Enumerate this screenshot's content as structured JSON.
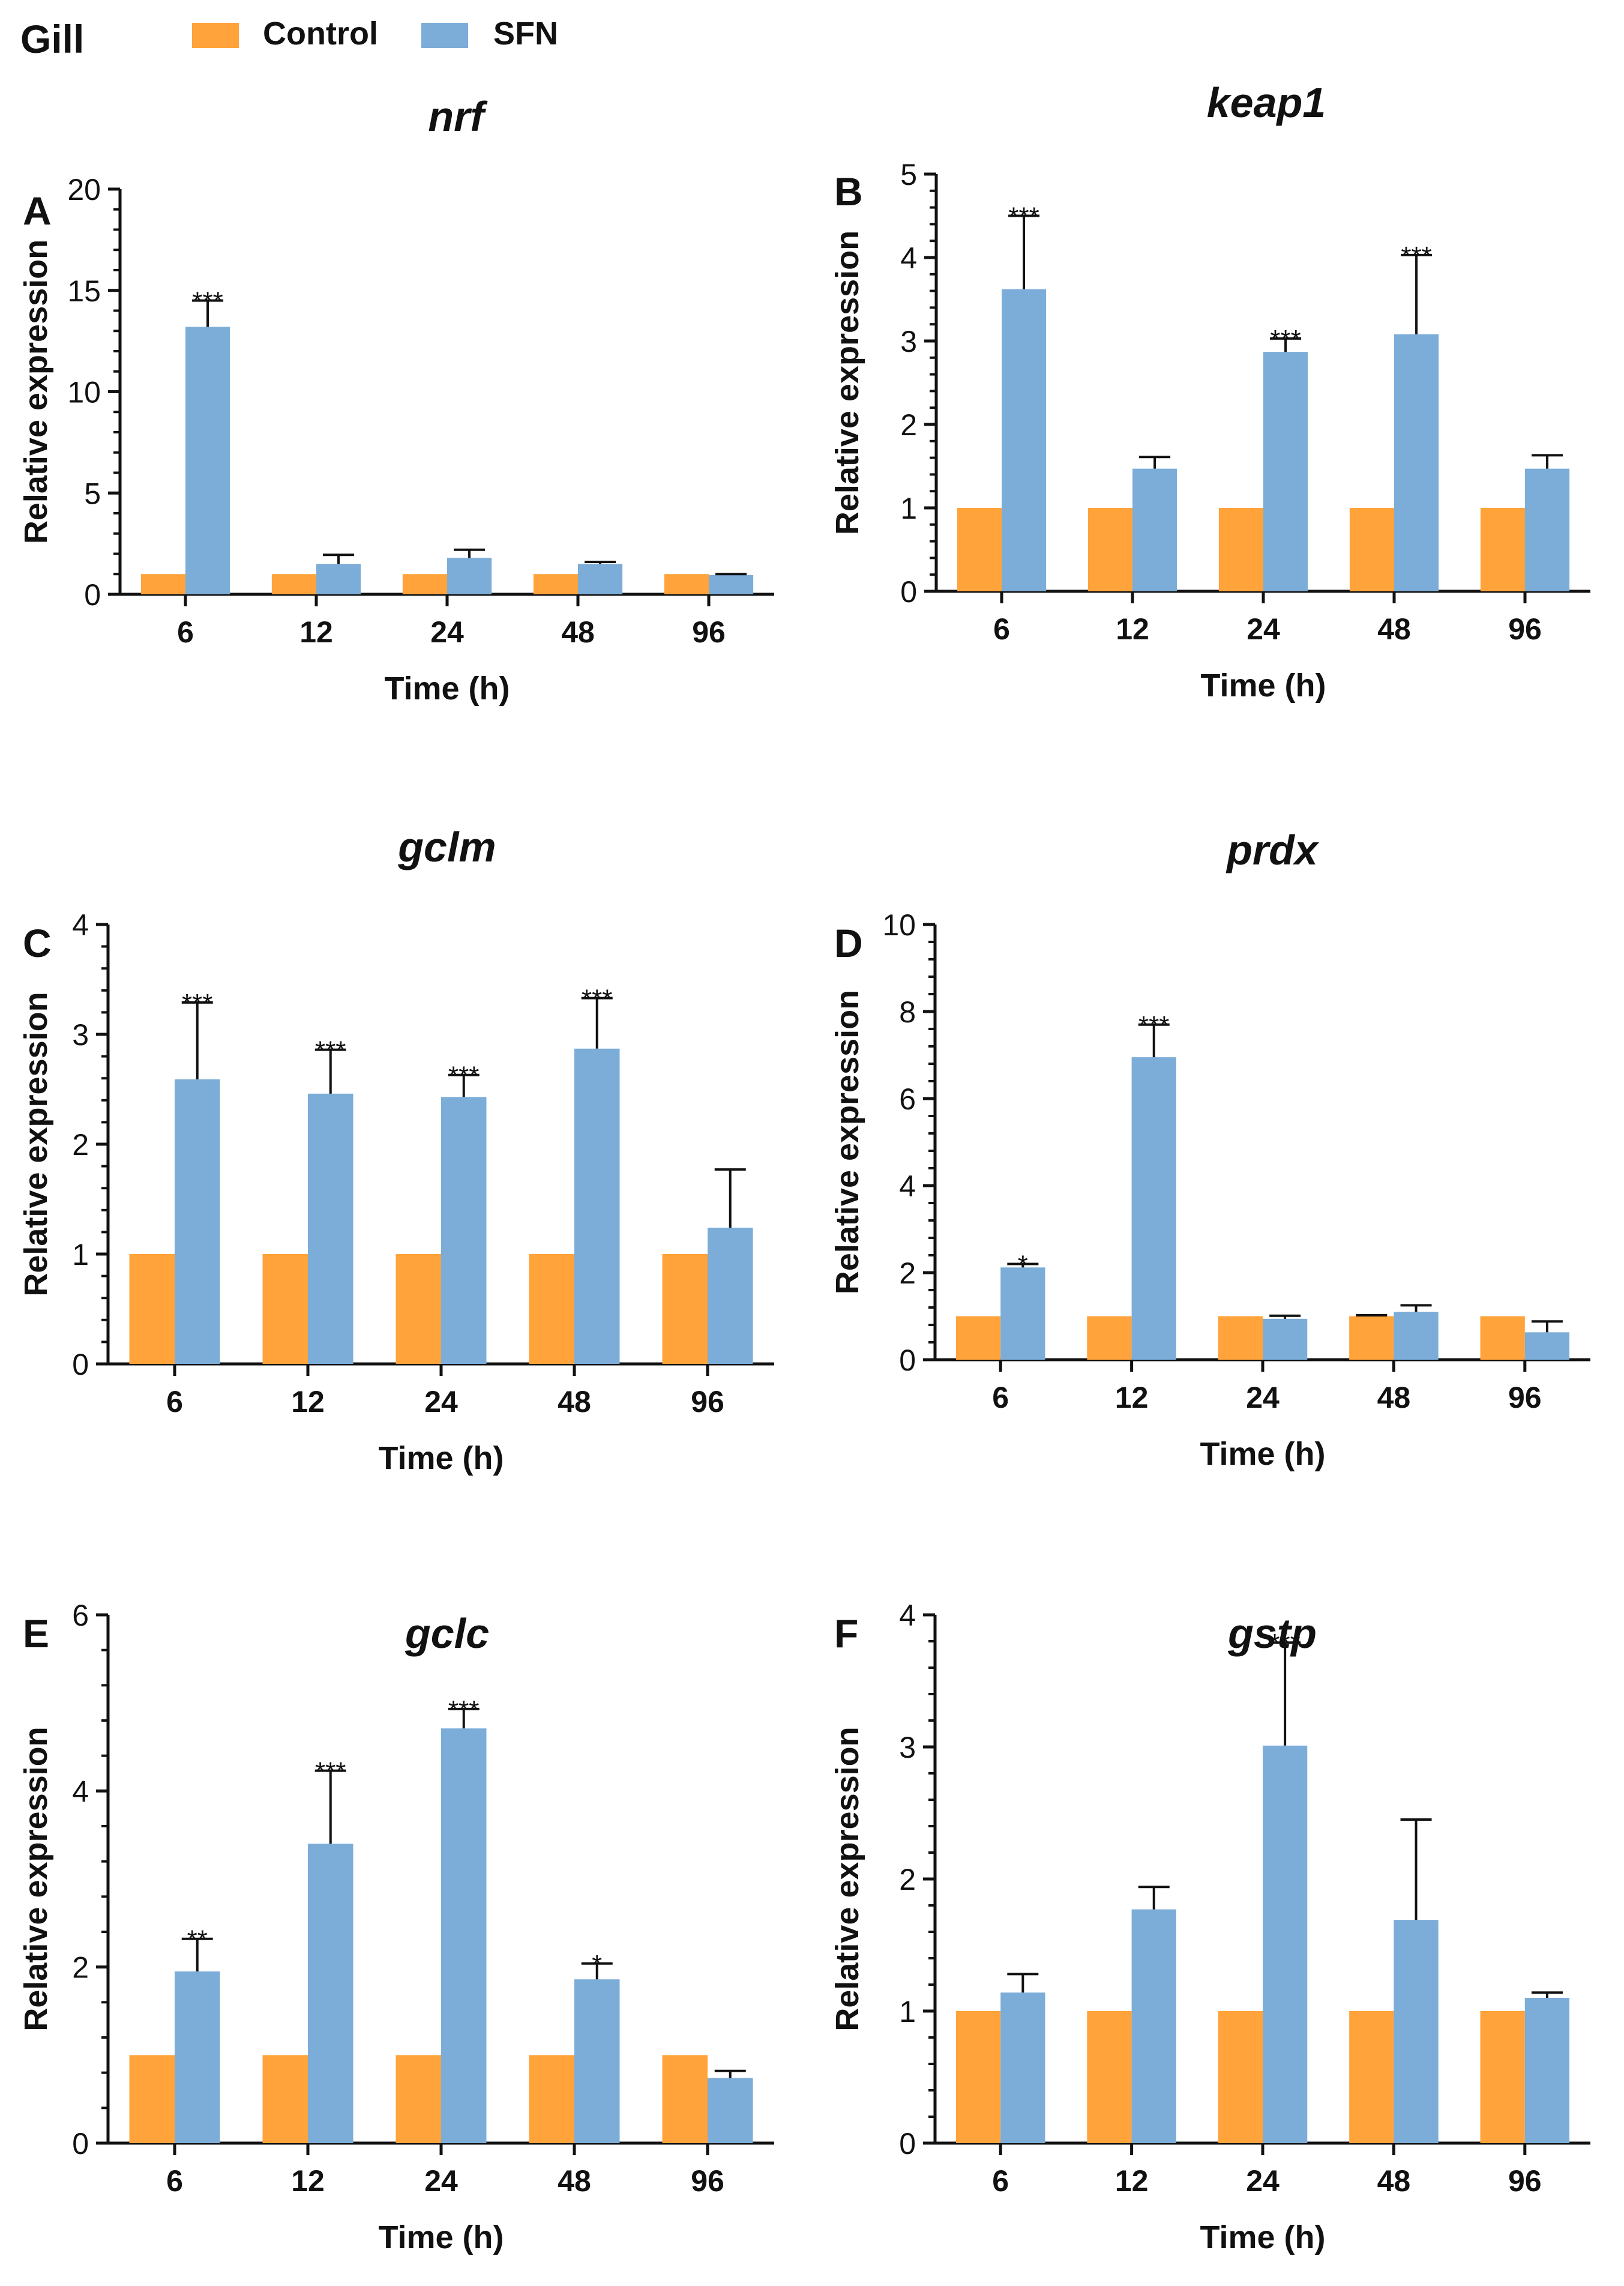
{
  "figure_label": "Gill",
  "legend": [
    {
      "name": "Control",
      "color": "#FFA33A"
    },
    {
      "name": "SFN",
      "color": "#7BADD8"
    }
  ],
  "chart_data": [
    {
      "type": "bar",
      "panel": "A",
      "title": "nrf",
      "xlabel": "Time (h)",
      "ylabel": "Relative expression",
      "categories": [
        "6",
        "12",
        "24",
        "48",
        "96"
      ],
      "ylim": [
        0,
        20
      ],
      "yticks": [
        0,
        5,
        10,
        15,
        20
      ],
      "series": [
        {
          "name": "Control",
          "values": [
            1,
            1,
            1,
            1,
            1
          ],
          "errors": [
            0,
            0,
            0,
            0,
            0
          ]
        },
        {
          "name": "SFN",
          "values": [
            13.2,
            1.5,
            1.8,
            1.5,
            0.95
          ],
          "errors": [
            1.3,
            0.45,
            0.4,
            0.1,
            0.05
          ],
          "significance": [
            "***",
            "",
            "",
            "",
            ""
          ]
        }
      ]
    },
    {
      "type": "bar",
      "panel": "B",
      "title": "keap1",
      "xlabel": "Time (h)",
      "ylabel": "Relative expression",
      "categories": [
        "6",
        "12",
        "24",
        "48",
        "96"
      ],
      "ylim": [
        0,
        5
      ],
      "yticks": [
        0,
        1,
        2,
        3,
        4,
        5
      ],
      "series": [
        {
          "name": "Control",
          "values": [
            1,
            1,
            1,
            1,
            1
          ],
          "errors": [
            0,
            0,
            0,
            0,
            0
          ]
        },
        {
          "name": "SFN",
          "values": [
            3.62,
            1.47,
            2.87,
            3.08,
            1.47
          ],
          "errors": [
            0.88,
            0.14,
            0.16,
            0.95,
            0.16
          ],
          "significance": [
            "***",
            "",
            "***",
            "***",
            ""
          ]
        }
      ]
    },
    {
      "type": "bar",
      "panel": "C",
      "title": "gclm",
      "xlabel": "Time (h)",
      "ylabel": "Relative expression",
      "categories": [
        "6",
        "12",
        "24",
        "48",
        "96"
      ],
      "ylim": [
        0,
        4
      ],
      "yticks": [
        0,
        1,
        2,
        3,
        4
      ],
      "series": [
        {
          "name": "Control",
          "values": [
            1,
            1,
            1,
            1,
            1
          ],
          "errors": [
            0,
            0,
            0,
            0,
            0
          ]
        },
        {
          "name": "SFN",
          "values": [
            2.59,
            2.46,
            2.43,
            2.87,
            1.24
          ],
          "errors": [
            0.7,
            0.4,
            0.2,
            0.46,
            0.53
          ],
          "significance": [
            "***",
            "***",
            "***",
            "***",
            ""
          ]
        }
      ]
    },
    {
      "type": "bar",
      "panel": "D",
      "title": "prdx",
      "xlabel": "Time (h)",
      "ylabel": "Relative expression",
      "categories": [
        "6",
        "12",
        "24",
        "48",
        "96"
      ],
      "ylim": [
        0,
        10
      ],
      "yticks": [
        0,
        2,
        4,
        6,
        8,
        10
      ],
      "series": [
        {
          "name": "Control",
          "values": [
            1,
            1,
            1,
            1,
            1
          ],
          "errors": [
            0,
            0,
            0,
            0.02,
            0
          ]
        },
        {
          "name": "SFN",
          "values": [
            2.12,
            6.95,
            0.94,
            1.1,
            0.63
          ],
          "errors": [
            0.08,
            0.75,
            0.07,
            0.15,
            0.25
          ],
          "significance": [
            "*",
            "***",
            "",
            "",
            ""
          ]
        }
      ]
    },
    {
      "type": "bar",
      "panel": "E",
      "title": "gclc",
      "xlabel": "Time (h)",
      "ylabel": "Relative expression",
      "categories": [
        "6",
        "12",
        "24",
        "48",
        "96"
      ],
      "ylim": [
        0,
        6
      ],
      "yticks": [
        0,
        2,
        4,
        6
      ],
      "series": [
        {
          "name": "Control",
          "values": [
            1,
            1,
            1,
            1,
            1
          ],
          "errors": [
            0,
            0,
            0,
            0,
            0
          ]
        },
        {
          "name": "SFN",
          "values": [
            1.95,
            3.4,
            4.71,
            1.86,
            0.74
          ],
          "errors": [
            0.37,
            0.83,
            0.22,
            0.18,
            0.08
          ],
          "significance": [
            "**",
            "***",
            "***",
            "*",
            ""
          ]
        }
      ]
    },
    {
      "type": "bar",
      "panel": "F",
      "title": "gstp",
      "xlabel": "Time (h)",
      "ylabel": "Relative expression",
      "categories": [
        "6",
        "12",
        "24",
        "48",
        "96"
      ],
      "ylim": [
        0,
        4
      ],
      "yticks": [
        0,
        1,
        2,
        3,
        4
      ],
      "series": [
        {
          "name": "Control",
          "values": [
            1,
            1,
            1,
            1,
            1
          ],
          "errors": [
            0,
            0,
            0,
            0,
            0
          ]
        },
        {
          "name": "SFN",
          "values": [
            1.14,
            1.77,
            3.01,
            1.69,
            1.1
          ],
          "errors": [
            0.14,
            0.17,
            0.78,
            0.76,
            0.04
          ],
          "significance": [
            "",
            "",
            "***",
            "",
            ""
          ]
        }
      ]
    }
  ]
}
